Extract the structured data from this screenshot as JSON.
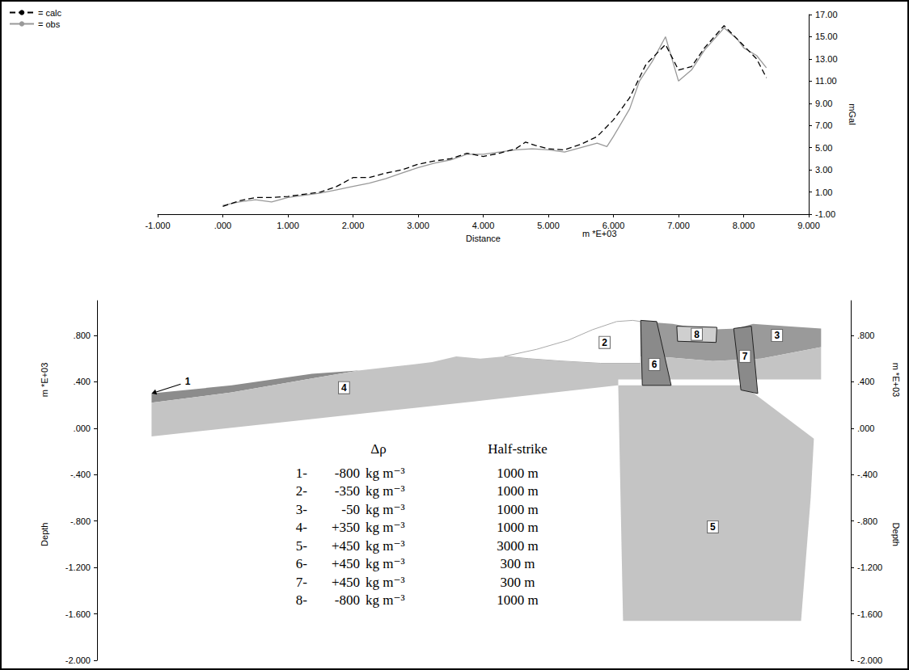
{
  "chart_data": [
    {
      "type": "line",
      "legend": "top-left",
      "grid": false,
      "x_label": "Distance",
      "x_unit": "m *E+03",
      "y_label": "mGal",
      "xlim": [
        -1,
        9
      ],
      "xticks": [
        {
          "value": -1,
          "label": "-1.000"
        },
        {
          "value": 0,
          "label": ".000"
        },
        {
          "value": 1,
          "label": "1.000"
        },
        {
          "value": 2,
          "label": "2.000"
        },
        {
          "value": 3,
          "label": "3.000"
        },
        {
          "value": 4,
          "label": "4.000"
        },
        {
          "value": 5,
          "label": "5.000"
        },
        {
          "value": 6,
          "label": "6.000"
        },
        {
          "value": 7,
          "label": "7.000"
        },
        {
          "value": 8,
          "label": "8.000"
        },
        {
          "value": 9,
          "label": "9.000"
        }
      ],
      "ylim": [
        -1,
        17
      ],
      "yticks": [
        {
          "value": -1,
          "label": "-1.00"
        },
        {
          "value": 1,
          "label": "1.00"
        },
        {
          "value": 3,
          "label": "3.00"
        },
        {
          "value": 5,
          "label": "5.00"
        },
        {
          "value": 7,
          "label": "7.00"
        },
        {
          "value": 9,
          "label": "9.00"
        },
        {
          "value": 11,
          "label": "11.00"
        },
        {
          "value": 13,
          "label": "13.00"
        },
        {
          "value": 15,
          "label": "15.00"
        },
        {
          "value": 17,
          "label": "17.00"
        }
      ],
      "series": [
        {
          "name": "= calc",
          "color": "#000000",
          "line_style": "dashed",
          "x": [
            0,
            0.25,
            0.5,
            0.75,
            1,
            1.25,
            1.5,
            1.75,
            2,
            2.25,
            2.5,
            2.75,
            3,
            3.25,
            3.5,
            3.75,
            4,
            4.25,
            4.5,
            4.65,
            4.8,
            5,
            5.25,
            5.5,
            5.75,
            6,
            6.25,
            6.5,
            6.8,
            7,
            7.2,
            7.4,
            7.7,
            7.95,
            8.2,
            8.35
          ],
          "values": [
            -0.3,
            0.2,
            0.5,
            0.5,
            0.6,
            0.8,
            1.0,
            1.5,
            2.3,
            2.3,
            2.7,
            3.0,
            3.5,
            3.8,
            4.0,
            4.5,
            4.2,
            4.5,
            4.9,
            5.5,
            5.2,
            4.9,
            4.8,
            5.3,
            6.0,
            7.5,
            9.5,
            12.5,
            14.3,
            12.0,
            12.3,
            14.0,
            16.0,
            14.5,
            13.0,
            11.3
          ]
        },
        {
          "name": "= obs",
          "color": "#999999",
          "line_style": "solid",
          "x": [
            0,
            0.25,
            0.5,
            0.75,
            1,
            1.25,
            1.5,
            1.75,
            2,
            2.25,
            2.5,
            2.75,
            3,
            3.25,
            3.5,
            3.75,
            4,
            4.25,
            4.5,
            4.75,
            5,
            5.25,
            5.5,
            5.75,
            5.9,
            6.0,
            6.25,
            6.4,
            6.6,
            6.8,
            7,
            7.2,
            7.4,
            7.7,
            7.9,
            8.0,
            8.2,
            8.35
          ],
          "values": [
            -0.2,
            0.1,
            0.3,
            0.1,
            0.5,
            0.7,
            0.9,
            1.2,
            1.5,
            1.8,
            2.2,
            2.7,
            3.2,
            3.6,
            3.9,
            4.4,
            4.4,
            4.6,
            4.8,
            4.9,
            4.8,
            4.6,
            5.0,
            5.4,
            5.1,
            6.0,
            8.5,
            11.0,
            12.8,
            15.0,
            11.0,
            12.0,
            13.8,
            15.8,
            14.8,
            14.0,
            13.3,
            12.2
          ]
        }
      ]
    },
    {
      "type": "section",
      "grid": false,
      "tick_labels": "y",
      "y_label": "Depth",
      "y_unit": "m *E+03",
      "xlim": [
        -0.68,
        8.72
      ],
      "xticks": [],
      "ylim": [
        -2,
        1.1
      ],
      "yticks": [
        {
          "value": 0.8,
          "label": ".800"
        },
        {
          "value": 0.4,
          "label": ".400"
        },
        {
          "value": 0,
          "label": ".000"
        },
        {
          "value": -0.4,
          "label": "-.400"
        },
        {
          "value": -0.8,
          "label": "-.800"
        },
        {
          "value": -1.2,
          "label": "-1.200"
        },
        {
          "value": -1.6,
          "label": "-1.600"
        },
        {
          "value": -2,
          "label": "-2.000"
        }
      ],
      "table": {
        "headers": [
          "Δρ",
          "Half-strike"
        ],
        "delta_rho_unit": "kg m⁻³",
        "half_strike_unit": "m"
      },
      "bodies": [
        {
          "label": "1",
          "list_label": "1-",
          "delta_rho": -800,
          "delta_rho_label": "-800",
          "half_strike": 1000,
          "color": "#8c8c8c",
          "line_style": "none",
          "label_at": [
            0.45,
            0.4
          ],
          "polygon": [
            [
              0,
              0.3
            ],
            [
              1,
              0.37
            ],
            [
              2,
              0.47
            ],
            [
              2.6,
              0.5
            ],
            [
              2,
              0.43
            ],
            [
              1,
              0.31
            ],
            [
              0,
              0.22
            ]
          ]
        },
        {
          "label": "2",
          "list_label": "2-",
          "delta_rho": -350,
          "delta_rho_label": "-350",
          "half_strike": 1000,
          "color": "#ffffff",
          "line_style": "solid",
          "label_at": [
            5.65,
            0.74
          ],
          "polygon": [
            [
              4.4,
              0.62
            ],
            [
              4.8,
              0.68
            ],
            [
              5.2,
              0.76
            ],
            [
              5.5,
              0.85
            ],
            [
              5.8,
              0.92
            ],
            [
              6.0,
              0.93
            ],
            [
              6.1,
              0.92
            ],
            [
              6.1,
              0.56
            ],
            [
              5.6,
              0.56
            ],
            [
              5.1,
              0.58
            ],
            [
              4.7,
              0.6
            ]
          ]
        },
        {
          "label": "3",
          "list_label": "3-",
          "delta_rho": -50,
          "delta_rho_label": "-50",
          "half_strike": 1000,
          "color": "#9a9a9a",
          "line_style": "none",
          "label_at": [
            7.8,
            0.8
          ],
          "polygon": [
            [
              6.1,
              0.92
            ],
            [
              6.5,
              0.9
            ],
            [
              6.9,
              0.85
            ],
            [
              7.3,
              0.86
            ],
            [
              7.5,
              0.9
            ],
            [
              7.9,
              0.88
            ],
            [
              8.35,
              0.86
            ],
            [
              8.35,
              0.7
            ],
            [
              7.6,
              0.6
            ],
            [
              7.0,
              0.58
            ],
            [
              6.3,
              0.62
            ],
            [
              6.1,
              0.62
            ]
          ]
        },
        {
          "label": "4",
          "list_label": "4-",
          "delta_rho": 350,
          "delta_rho_label": "+350",
          "half_strike": 1000,
          "color": "#c4c4c4",
          "line_style": "none",
          "label_at": [
            2.4,
            0.35
          ],
          "polygon": [
            [
              0,
              0.22
            ],
            [
              1,
              0.31
            ],
            [
              2,
              0.43
            ],
            [
              2.6,
              0.5
            ],
            [
              3,
              0.53
            ],
            [
              3.5,
              0.57
            ],
            [
              3.8,
              0.62
            ],
            [
              4.1,
              0.6
            ],
            [
              4.4,
              0.62
            ],
            [
              4.7,
              0.6
            ],
            [
              5.1,
              0.58
            ],
            [
              5.6,
              0.56
            ],
            [
              6.1,
              0.56
            ],
            [
              6.1,
              0.62
            ],
            [
              6.3,
              0.62
            ],
            [
              7.0,
              0.58
            ],
            [
              7.6,
              0.6
            ],
            [
              8.35,
              0.7
            ],
            [
              8.35,
              0.42
            ],
            [
              5.82,
              0.42
            ],
            [
              5.82,
              0.37
            ],
            [
              4,
              0.23
            ],
            [
              2,
              0.08
            ],
            [
              0,
              -0.07
            ]
          ]
        },
        {
          "label": "5",
          "list_label": "5-",
          "delta_rho": 450,
          "delta_rho_label": "+450",
          "half_strike": 3000,
          "color": "#c4c4c4",
          "line_style": "none",
          "label_at": [
            7.0,
            -0.85
          ],
          "polygon": [
            [
              5.82,
              0.37
            ],
            [
              7.38,
              0.37
            ],
            [
              8.26,
              -0.09
            ],
            [
              8.22,
              -0.6
            ],
            [
              8.1,
              -1.66
            ],
            [
              5.88,
              -1.66
            ]
          ]
        },
        {
          "label": "6",
          "list_label": "6-",
          "delta_rho": 450,
          "delta_rho_label": "+450",
          "half_strike": 300,
          "color": "#8a8a8a",
          "line_style": "solid",
          "label_at": [
            6.27,
            0.55
          ],
          "polygon": [
            [
              6.1,
              0.93
            ],
            [
              6.3,
              0.92
            ],
            [
              6.48,
              0.37
            ],
            [
              6.12,
              0.37
            ]
          ]
        },
        {
          "label": "7",
          "list_label": "7-",
          "delta_rho": 450,
          "delta_rho_label": "+450",
          "half_strike": 300,
          "color": "#8a8a8a",
          "line_style": "solid",
          "label_at": [
            7.4,
            0.62
          ],
          "polygon": [
            [
              7.26,
              0.86
            ],
            [
              7.48,
              0.88
            ],
            [
              7.56,
              0.3
            ],
            [
              7.35,
              0.33
            ]
          ]
        },
        {
          "label": "8",
          "list_label": "8-",
          "delta_rho": -800,
          "delta_rho_label": "-800",
          "half_strike": 1000,
          "color": "#cfcfcf",
          "line_style": "solid",
          "label_at": [
            6.8,
            0.81
          ],
          "polygon": [
            [
              6.55,
              0.88
            ],
            [
              7.05,
              0.87
            ],
            [
              7.04,
              0.74
            ],
            [
              6.56,
              0.75
            ]
          ]
        }
      ]
    }
  ]
}
